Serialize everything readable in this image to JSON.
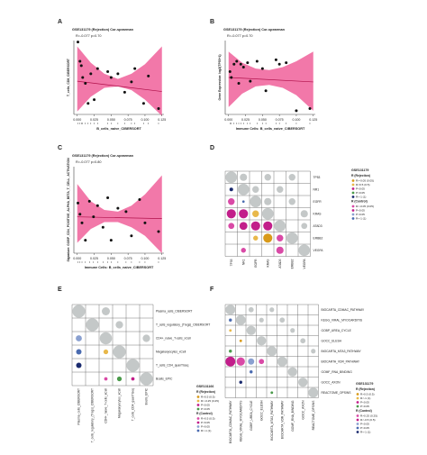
{
  "panel_letters": [
    "A",
    "B",
    "C",
    "D",
    "E",
    "F"
  ],
  "chart_data": [
    {
      "panel": "A",
      "type": "scatter",
      "title": "GSE131179 (Rejection) Cor-spearman",
      "stat": "R=-0.077 p=0.70",
      "xlabel": "B_cells_naive_CIBERSORT",
      "ylabel": "T_cells_CD8_CIBERSORT",
      "xticks": [
        "0.000",
        "0.025",
        "0.050",
        "0.075",
        "0.100",
        "0.125"
      ],
      "xlim": [
        -0.005,
        0.128
      ],
      "ylim": [
        0,
        1
      ],
      "fit": {
        "x": [
          0.0,
          0.125
        ],
        "y": [
          0.45,
          0.31
        ]
      },
      "band": {
        "x": [
          0.0,
          0.02,
          0.04,
          0.06,
          0.08,
          0.1,
          0.125
        ],
        "upper": [
          0.92,
          0.7,
          0.55,
          0.48,
          0.55,
          0.68,
          0.92
        ],
        "lower": [
          0.04,
          0.24,
          0.36,
          0.38,
          0.33,
          0.2,
          -0.02
        ]
      },
      "points": {
        "x": [
          0.001,
          0.004,
          0.006,
          0.008,
          0.012,
          0.016,
          0.02,
          0.025,
          0.03,
          0.045,
          0.05,
          0.06,
          0.07,
          0.08,
          0.085,
          0.098,
          0.105,
          0.12
        ],
        "y": [
          0.98,
          0.72,
          0.66,
          0.5,
          0.42,
          0.15,
          0.55,
          0.2,
          0.62,
          0.58,
          0.5,
          0.55,
          0.3,
          0.44,
          0.62,
          0.15,
          0.52,
          0.08
        ]
      }
    },
    {
      "panel": "B",
      "type": "scatter",
      "title": "GSE131179 (Rejection) Cor-spearman",
      "stat": "R=-0.077 p=0.70",
      "xlabel": "Immune Cells: B_cells_naive_CIBERSORT",
      "ylabel": "Gene Expression: log2(TP53+1)",
      "xticks": [
        "0.000",
        "0.025",
        "0.050",
        "0.075",
        "0.100",
        "0.125"
      ],
      "xlim": [
        -0.005,
        0.128
      ],
      "ylim": [
        0,
        1
      ],
      "fit": {
        "x": [
          0.0,
          0.125
        ],
        "y": [
          0.5,
          0.44
        ]
      },
      "band": {
        "x": [
          0.0,
          0.02,
          0.04,
          0.06,
          0.08,
          0.1,
          0.125
        ],
        "upper": [
          0.85,
          0.7,
          0.62,
          0.6,
          0.64,
          0.72,
          0.85
        ],
        "lower": [
          0.1,
          0.28,
          0.38,
          0.4,
          0.36,
          0.26,
          0.05
        ]
      },
      "points": {
        "x": [
          0.002,
          0.004,
          0.008,
          0.012,
          0.015,
          0.018,
          0.022,
          0.028,
          0.032,
          0.042,
          0.05,
          0.055,
          0.07,
          0.075,
          0.085,
          0.1,
          0.12
        ],
        "y": [
          0.58,
          0.5,
          0.68,
          0.72,
          0.42,
          0.68,
          0.64,
          0.7,
          0.45,
          0.72,
          0.62,
          0.32,
          0.74,
          0.68,
          0.7,
          0.05,
          0.08
        ]
      }
    },
    {
      "panel": "C",
      "type": "scatter",
      "title": "GSE131179 (Rejection) Cor-spearman",
      "stat": "R=-0.077 p=0.80",
      "xlabel": "Immune Cells: B_cells_naive_CIBERSORT",
      "ylabel": "Signature: GOBP_CD4_POSITIVE_ALPHA_BETA_T_CELL_ACTIVATION",
      "xticks": [
        "0.000",
        "0.025",
        "0.050",
        "0.075",
        "0.100",
        "0.125"
      ],
      "xlim": [
        -0.005,
        0.128
      ],
      "ylim": [
        0,
        1
      ],
      "fit": {
        "x": [
          0.0,
          0.125
        ],
        "y": [
          0.42,
          0.4
        ]
      },
      "band": {
        "x": [
          0.0,
          0.02,
          0.04,
          0.06,
          0.08,
          0.1,
          0.125
        ],
        "upper": [
          0.8,
          0.6,
          0.5,
          0.48,
          0.55,
          0.68,
          0.9
        ],
        "lower": [
          0.12,
          0.28,
          0.36,
          0.36,
          0.3,
          0.2,
          0.0
        ]
      },
      "points": {
        "x": [
          0.001,
          0.004,
          0.007,
          0.012,
          0.018,
          0.024,
          0.03,
          0.038,
          0.045,
          0.05,
          0.06,
          0.072,
          0.08,
          0.092,
          0.1,
          0.12
        ],
        "y": [
          0.58,
          0.45,
          0.35,
          0.15,
          0.6,
          0.42,
          0.55,
          0.3,
          0.64,
          0.15,
          0.52,
          0.48,
          0.2,
          0.62,
          0.35,
          0.25
        ]
      }
    },
    {
      "panel": "D",
      "type": "heatmap",
      "genes": [
        "TP53",
        "NR1",
        "EGFR",
        "KRAS",
        "ATAD3",
        "ERBB2",
        "VEGFA"
      ],
      "note": "lower triangle correlations, circle size = |R|",
      "legend": {
        "title": "GSE131179",
        "group1": "R (Rejection)",
        "group1_items": [
          "R>-0.05 (0.05)",
          "R<0.5 (0.5)",
          "P<0.05",
          "P>0.05",
          "R<-1 (1)"
        ],
        "group2": "R (Control)",
        "group2_items": [
          "R<-0.05 (0.05)",
          "P<0.05",
          "P>0.05",
          "R<-1 (1)"
        ]
      },
      "upper_cells": [
        [
          0,
          0,
          0.95
        ],
        [
          1,
          1,
          0.95
        ],
        [
          2,
          2,
          0.95
        ],
        [
          3,
          3,
          0.95
        ],
        [
          4,
          4,
          0.95
        ],
        [
          5,
          5,
          0.95
        ],
        [
          6,
          6,
          0.95
        ],
        [
          0,
          1,
          0.6
        ],
        [
          0,
          3,
          0.55
        ],
        [
          0,
          5,
          0.55
        ],
        [
          1,
          2,
          0.55
        ],
        [
          1,
          4,
          0.55
        ],
        [
          2,
          3,
          0.6
        ],
        [
          2,
          5,
          0.55
        ],
        [
          3,
          6,
          0.6
        ],
        [
          4,
          6,
          0.5
        ]
      ],
      "lower_cells": [
        [
          1,
          0,
          0.3,
          "#1a2a6e"
        ],
        [
          2,
          0,
          0.55,
          "#d94aa6"
        ],
        [
          2,
          1,
          0.2,
          "#4a6bb0"
        ],
        [
          3,
          0,
          0.75,
          "#c21e8a"
        ],
        [
          3,
          1,
          0.75,
          "#c21e8a"
        ],
        [
          3,
          2,
          0.55,
          "#e8b84a"
        ],
        [
          4,
          0,
          0.5,
          "#d94aa6"
        ],
        [
          4,
          1,
          0.65,
          "#c21e8a"
        ],
        [
          4,
          2,
          0.75,
          "#c21e8a"
        ],
        [
          4,
          3,
          0.75,
          "#c21e8a"
        ],
        [
          5,
          2,
          0.4,
          "#e8b84a"
        ],
        [
          5,
          3,
          0.75,
          "#d99a1a"
        ],
        [
          5,
          4,
          0.55,
          "#d94aa6"
        ],
        [
          6,
          1,
          0.4,
          "#d94aa6"
        ],
        [
          6,
          4,
          0.6,
          "#d94aa6"
        ]
      ]
    },
    {
      "panel": "E",
      "type": "heatmap",
      "rows": [
        "Plasma_cells_CIBERSORT",
        "T_cells_regulatory_(Tregs)_CIBERSORT",
        "CD4+_naive_T-cells_xCell",
        "Megakaryocytes_xCell",
        "T_cells_CD4_quanTIseq",
        "Bcells_EPIC"
      ],
      "cols": [
        "Plasma_cells_CIBERSORT",
        "T_cells_regulatory_(Tregs)_CIBERSORT",
        "CD4+_naive_T-cells_xCell",
        "Megakaryocytes_xCell",
        "T_cells_CD4_quanTIseq",
        "Bcells_EPIC"
      ],
      "legend": {
        "title": "GSE131166",
        "group1": "R (Rejection)",
        "group1_items": [
          "R>0.5 (0.5)",
          "R<-0.25 (0.25)",
          "P<0.05",
          "P>0.05"
        ],
        "group2": "R (Control)",
        "group2_items": [
          "R>0.5 (0.5)",
          "P<0.05",
          "P>0.05",
          "R<-1 (1)"
        ]
      },
      "upper_cells": [
        [
          0,
          0,
          0.95
        ],
        [
          1,
          1,
          0.95
        ],
        [
          2,
          2,
          0.9
        ],
        [
          3,
          3,
          0.95
        ],
        [
          4,
          4,
          0.95
        ],
        [
          5,
          5,
          0.95
        ],
        [
          0,
          2,
          0.6
        ],
        [
          1,
          3,
          0.55
        ],
        [
          2,
          5,
          0.55
        ]
      ],
      "lower_cells": [
        [
          2,
          0,
          0.45,
          "#8aa0d0"
        ],
        [
          3,
          0,
          0.4,
          "#4a6bb0"
        ],
        [
          3,
          2,
          0.35,
          "#e8b84a"
        ],
        [
          4,
          0,
          0.4,
          "#1a2a6e"
        ],
        [
          5,
          2,
          0.25,
          "#d94aa6"
        ],
        [
          5,
          3,
          0.35,
          "#4a9a4a"
        ],
        [
          5,
          4,
          0.25,
          "#c21e8a"
        ]
      ]
    },
    {
      "panel": "F",
      "type": "heatmap",
      "rows": [
        "BIOCARTA_CDMAC_PATHWAY",
        "KEGG_VIRAL_MYOCARDITIS",
        "GOBP_UREA_CYCLE",
        "GOCC_ELESH",
        "BIOCARTA_MTA3_PATHWAY",
        "BIOCARTA_VDR_PATHWAY",
        "GOMF_RNA_BINDING",
        "GOCC_AXON",
        "REACTOME_OPSINS"
      ],
      "cols": [
        "BIOCARTA_CDMAC_PATHWAY",
        "KEGG_VIRAL_MYOCARDITIS",
        "GOBP_UREA_CYCLE",
        "GOCC_ELESH",
        "BIOCARTA_MTA3_PATHWAY",
        "BIOCARTA_VDR_PATHWAY",
        "GOMF_RNA_BINDING",
        "GOCC_AXON",
        "REACTOME_OPSINS"
      ],
      "legend": {
        "title": "GSE131179",
        "group1": "R (Rejection)",
        "group1_items": [
          "R>0.5 (0.5)",
          "R<-1 (1)",
          "P<0.05",
          "P>0.05"
        ],
        "group2": "R (Control)",
        "group2_items": [
          "R>0.25 (0.25)",
          "R<-0.5 (0.5)",
          "P<0.05",
          "P>0.05",
          "R<-1 (1)"
        ]
      },
      "upper_cells": [
        [
          0,
          0,
          0.95
        ],
        [
          1,
          1,
          0.95
        ],
        [
          2,
          2,
          0.9
        ],
        [
          3,
          3,
          0.9
        ],
        [
          4,
          4,
          0.95
        ],
        [
          5,
          5,
          0.95
        ],
        [
          6,
          6,
          0.9
        ],
        [
          7,
          7,
          0.9
        ],
        [
          8,
          8,
          0.95
        ],
        [
          0,
          2,
          0.5
        ],
        [
          0,
          4,
          0.45
        ],
        [
          1,
          3,
          0.45
        ],
        [
          1,
          5,
          0.5
        ],
        [
          2,
          6,
          0.45
        ],
        [
          3,
          7,
          0.5
        ],
        [
          4,
          8,
          0.45
        ]
      ],
      "lower_cells": [
        [
          1,
          0,
          0.3,
          "#4a6bb0"
        ],
        [
          2,
          0,
          0.25,
          "#e8b84a"
        ],
        [
          3,
          1,
          0.25,
          "#d99a1a"
        ],
        [
          4,
          0,
          0.3,
          "#4a9a4a"
        ],
        [
          5,
          0,
          0.95,
          "#c21e8a"
        ],
        [
          5,
          1,
          0.8,
          "#d94aa6"
        ],
        [
          5,
          2,
          0.6,
          "#8aa0d0"
        ],
        [
          5,
          3,
          0.5,
          "#d94aa6"
        ],
        [
          6,
          2,
          0.3,
          "#4a6bb0"
        ],
        [
          7,
          1,
          0.3,
          "#1a2a6e"
        ],
        [
          8,
          4,
          0.25,
          "#4a9a4a"
        ]
      ]
    }
  ],
  "colors": {
    "band": "#f0609a",
    "fit": "#b0104a",
    "point": "#111111",
    "grey": "#c4c8c8",
    "grid": "#555555"
  }
}
